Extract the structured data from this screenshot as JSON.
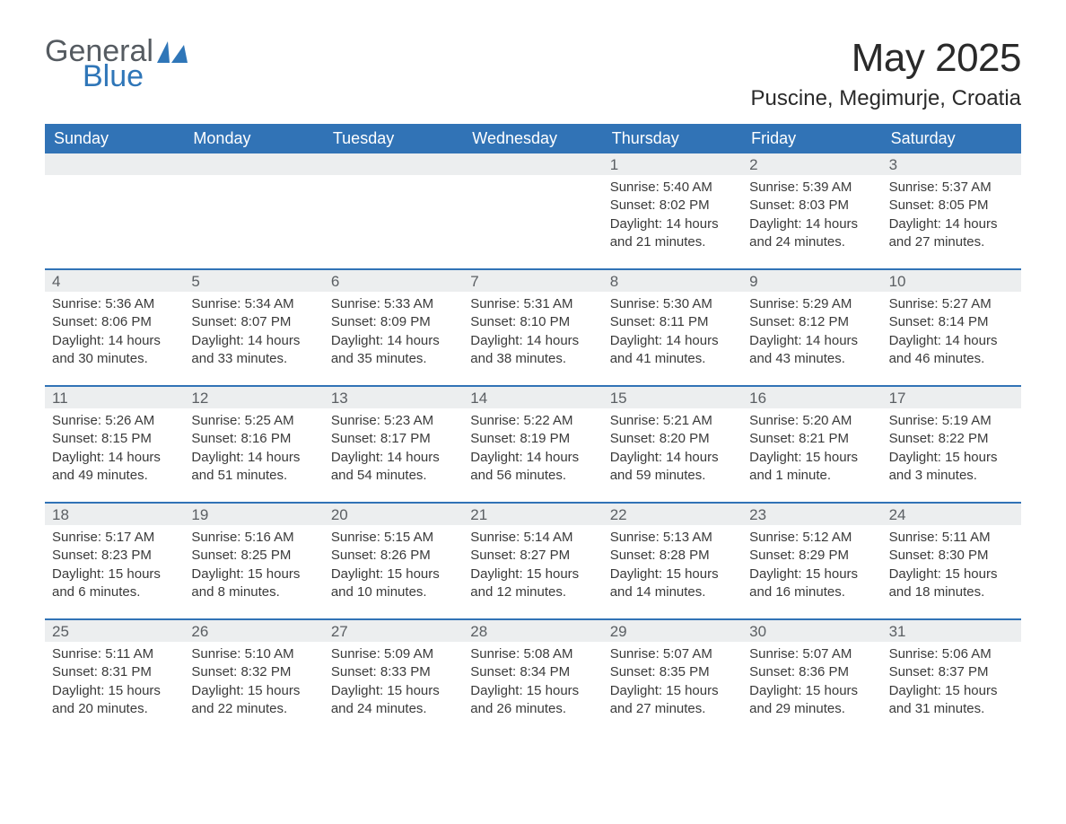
{
  "logo": {
    "text_general": "General",
    "text_blue": "Blue",
    "sail_color": "#2f76b8",
    "general_color": "#555b61"
  },
  "title": "May 2025",
  "subtitle": "Puscine, Megimurje, Croatia",
  "colors": {
    "header_bg": "#3173b6",
    "header_text": "#ffffff",
    "daynum_bg": "#eceeef",
    "daynum_text": "#5b5f63",
    "body_text": "#3a3a3a",
    "row_divider": "#3173b6",
    "page_bg": "#ffffff"
  },
  "weekdays": [
    "Sunday",
    "Monday",
    "Tuesday",
    "Wednesday",
    "Thursday",
    "Friday",
    "Saturday"
  ],
  "weeks": [
    [
      {
        "day": "",
        "sunrise": "",
        "sunset": "",
        "daylight": ""
      },
      {
        "day": "",
        "sunrise": "",
        "sunset": "",
        "daylight": ""
      },
      {
        "day": "",
        "sunrise": "",
        "sunset": "",
        "daylight": ""
      },
      {
        "day": "",
        "sunrise": "",
        "sunset": "",
        "daylight": ""
      },
      {
        "day": "1",
        "sunrise": "Sunrise: 5:40 AM",
        "sunset": "Sunset: 8:02 PM",
        "daylight": "Daylight: 14 hours and 21 minutes."
      },
      {
        "day": "2",
        "sunrise": "Sunrise: 5:39 AM",
        "sunset": "Sunset: 8:03 PM",
        "daylight": "Daylight: 14 hours and 24 minutes."
      },
      {
        "day": "3",
        "sunrise": "Sunrise: 5:37 AM",
        "sunset": "Sunset: 8:05 PM",
        "daylight": "Daylight: 14 hours and 27 minutes."
      }
    ],
    [
      {
        "day": "4",
        "sunrise": "Sunrise: 5:36 AM",
        "sunset": "Sunset: 8:06 PM",
        "daylight": "Daylight: 14 hours and 30 minutes."
      },
      {
        "day": "5",
        "sunrise": "Sunrise: 5:34 AM",
        "sunset": "Sunset: 8:07 PM",
        "daylight": "Daylight: 14 hours and 33 minutes."
      },
      {
        "day": "6",
        "sunrise": "Sunrise: 5:33 AM",
        "sunset": "Sunset: 8:09 PM",
        "daylight": "Daylight: 14 hours and 35 minutes."
      },
      {
        "day": "7",
        "sunrise": "Sunrise: 5:31 AM",
        "sunset": "Sunset: 8:10 PM",
        "daylight": "Daylight: 14 hours and 38 minutes."
      },
      {
        "day": "8",
        "sunrise": "Sunrise: 5:30 AM",
        "sunset": "Sunset: 8:11 PM",
        "daylight": "Daylight: 14 hours and 41 minutes."
      },
      {
        "day": "9",
        "sunrise": "Sunrise: 5:29 AM",
        "sunset": "Sunset: 8:12 PM",
        "daylight": "Daylight: 14 hours and 43 minutes."
      },
      {
        "day": "10",
        "sunrise": "Sunrise: 5:27 AM",
        "sunset": "Sunset: 8:14 PM",
        "daylight": "Daylight: 14 hours and 46 minutes."
      }
    ],
    [
      {
        "day": "11",
        "sunrise": "Sunrise: 5:26 AM",
        "sunset": "Sunset: 8:15 PM",
        "daylight": "Daylight: 14 hours and 49 minutes."
      },
      {
        "day": "12",
        "sunrise": "Sunrise: 5:25 AM",
        "sunset": "Sunset: 8:16 PM",
        "daylight": "Daylight: 14 hours and 51 minutes."
      },
      {
        "day": "13",
        "sunrise": "Sunrise: 5:23 AM",
        "sunset": "Sunset: 8:17 PM",
        "daylight": "Daylight: 14 hours and 54 minutes."
      },
      {
        "day": "14",
        "sunrise": "Sunrise: 5:22 AM",
        "sunset": "Sunset: 8:19 PM",
        "daylight": "Daylight: 14 hours and 56 minutes."
      },
      {
        "day": "15",
        "sunrise": "Sunrise: 5:21 AM",
        "sunset": "Sunset: 8:20 PM",
        "daylight": "Daylight: 14 hours and 59 minutes."
      },
      {
        "day": "16",
        "sunrise": "Sunrise: 5:20 AM",
        "sunset": "Sunset: 8:21 PM",
        "daylight": "Daylight: 15 hours and 1 minute."
      },
      {
        "day": "17",
        "sunrise": "Sunrise: 5:19 AM",
        "sunset": "Sunset: 8:22 PM",
        "daylight": "Daylight: 15 hours and 3 minutes."
      }
    ],
    [
      {
        "day": "18",
        "sunrise": "Sunrise: 5:17 AM",
        "sunset": "Sunset: 8:23 PM",
        "daylight": "Daylight: 15 hours and 6 minutes."
      },
      {
        "day": "19",
        "sunrise": "Sunrise: 5:16 AM",
        "sunset": "Sunset: 8:25 PM",
        "daylight": "Daylight: 15 hours and 8 minutes."
      },
      {
        "day": "20",
        "sunrise": "Sunrise: 5:15 AM",
        "sunset": "Sunset: 8:26 PM",
        "daylight": "Daylight: 15 hours and 10 minutes."
      },
      {
        "day": "21",
        "sunrise": "Sunrise: 5:14 AM",
        "sunset": "Sunset: 8:27 PM",
        "daylight": "Daylight: 15 hours and 12 minutes."
      },
      {
        "day": "22",
        "sunrise": "Sunrise: 5:13 AM",
        "sunset": "Sunset: 8:28 PM",
        "daylight": "Daylight: 15 hours and 14 minutes."
      },
      {
        "day": "23",
        "sunrise": "Sunrise: 5:12 AM",
        "sunset": "Sunset: 8:29 PM",
        "daylight": "Daylight: 15 hours and 16 minutes."
      },
      {
        "day": "24",
        "sunrise": "Sunrise: 5:11 AM",
        "sunset": "Sunset: 8:30 PM",
        "daylight": "Daylight: 15 hours and 18 minutes."
      }
    ],
    [
      {
        "day": "25",
        "sunrise": "Sunrise: 5:11 AM",
        "sunset": "Sunset: 8:31 PM",
        "daylight": "Daylight: 15 hours and 20 minutes."
      },
      {
        "day": "26",
        "sunrise": "Sunrise: 5:10 AM",
        "sunset": "Sunset: 8:32 PM",
        "daylight": "Daylight: 15 hours and 22 minutes."
      },
      {
        "day": "27",
        "sunrise": "Sunrise: 5:09 AM",
        "sunset": "Sunset: 8:33 PM",
        "daylight": "Daylight: 15 hours and 24 minutes."
      },
      {
        "day": "28",
        "sunrise": "Sunrise: 5:08 AM",
        "sunset": "Sunset: 8:34 PM",
        "daylight": "Daylight: 15 hours and 26 minutes."
      },
      {
        "day": "29",
        "sunrise": "Sunrise: 5:07 AM",
        "sunset": "Sunset: 8:35 PM",
        "daylight": "Daylight: 15 hours and 27 minutes."
      },
      {
        "day": "30",
        "sunrise": "Sunrise: 5:07 AM",
        "sunset": "Sunset: 8:36 PM",
        "daylight": "Daylight: 15 hours and 29 minutes."
      },
      {
        "day": "31",
        "sunrise": "Sunrise: 5:06 AM",
        "sunset": "Sunset: 8:37 PM",
        "daylight": "Daylight: 15 hours and 31 minutes."
      }
    ]
  ]
}
